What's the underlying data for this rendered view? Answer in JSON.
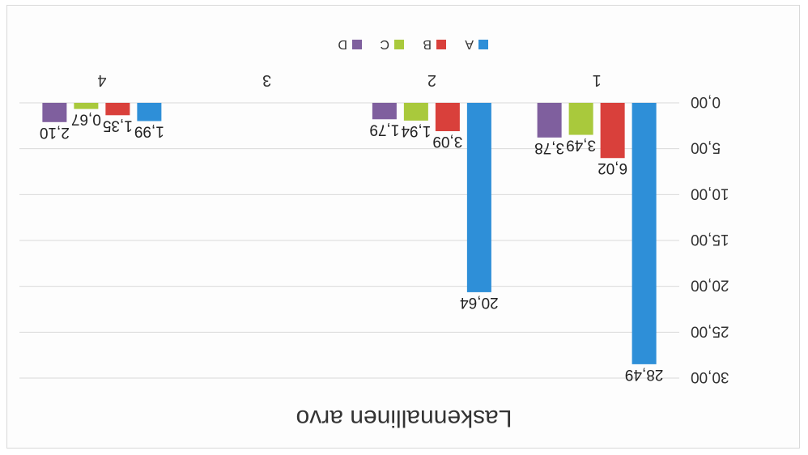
{
  "chart_data": {
    "type": "bar",
    "title": "Laskennallinen arvo",
    "categories": [
      "1",
      "2",
      "3",
      "4"
    ],
    "series": [
      {
        "name": "A",
        "color": "#2e8fd8",
        "values": [
          28.49,
          20.64,
          null,
          1.99
        ]
      },
      {
        "name": "B",
        "color": "#d9403b",
        "values": [
          6.02,
          3.09,
          null,
          1.35
        ]
      },
      {
        "name": "C",
        "color": "#a9c93c",
        "values": [
          3.49,
          1.94,
          null,
          0.67
        ]
      },
      {
        "name": "D",
        "color": "#7f5f9e",
        "values": [
          3.78,
          1.79,
          null,
          2.1
        ]
      }
    ],
    "value_labels": [
      [
        "28,49",
        "20,64",
        "",
        "1,99"
      ],
      [
        "6,02",
        "3,09",
        "",
        "1,35"
      ],
      [
        "3,49",
        "1,94",
        "",
        "0,67"
      ],
      [
        "3,78",
        "1,79",
        "",
        "2,10"
      ]
    ],
    "y_ticks": [
      "0,00",
      "5,00",
      "10,00",
      "15,00",
      "20,00",
      "25,00",
      "30,00"
    ],
    "ylim": [
      0,
      30
    ],
    "grid": true,
    "legend_position": "top",
    "orientation": "rotated 180 degrees (image shown upside down)"
  }
}
